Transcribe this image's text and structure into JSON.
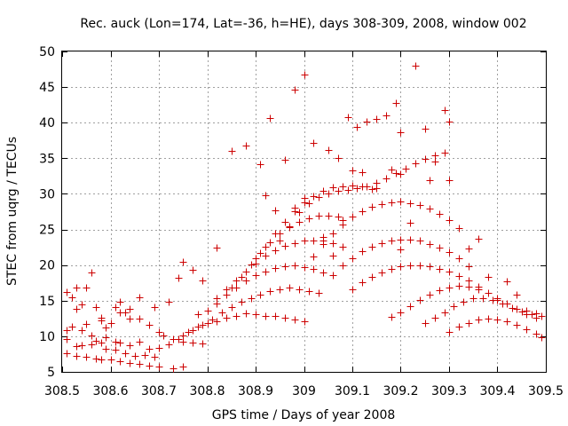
{
  "chart_data": {
    "type": "scatter",
    "title": "Rec. auck (Lon=174, Lat=-36, h=HE), days 308-309, 2008, window 002",
    "xlabel": "GPS time / Days of year 2008",
    "ylabel": "STEC from uqrg / TECUs",
    "xlim": [
      308.5,
      309.5
    ],
    "ylim": [
      5,
      50
    ],
    "xticks": [
      308.5,
      308.6,
      308.7,
      308.8,
      308.9,
      309,
      309.1,
      309.2,
      309.3,
      309.4,
      309.5
    ],
    "xtick_labels": [
      "308.5",
      "308.6",
      "308.7",
      "308.8",
      "308.9",
      "309",
      "309.1",
      "309.2",
      "309.3",
      "309.4",
      "309.5"
    ],
    "yticks": [
      5,
      10,
      15,
      20,
      25,
      30,
      35,
      40,
      45,
      50
    ],
    "ytick_labels": [
      "5",
      "10",
      "15",
      "20",
      "25",
      "30",
      "35",
      "40",
      "45",
      "50"
    ],
    "grid": true,
    "marker": "+",
    "color": "#cc0000",
    "series": [
      {
        "name": "STEC",
        "x": [
          308.51,
          308.52,
          308.53,
          308.54,
          308.55,
          308.57,
          308.58,
          308.6,
          308.62,
          308.64,
          308.51,
          308.52,
          308.54,
          308.55,
          308.56,
          308.57,
          308.59,
          308.61,
          308.62,
          308.64,
          308.66,
          308.51,
          308.53,
          308.54,
          308.56,
          308.58,
          308.59,
          308.61,
          308.63,
          308.65,
          308.67,
          308.69,
          308.51,
          308.53,
          308.55,
          308.57,
          308.58,
          308.6,
          308.62,
          308.64,
          308.66,
          308.68,
          308.7,
          308.73,
          308.75,
          308.62,
          308.64,
          308.66,
          308.68,
          308.7,
          308.71,
          308.73,
          308.75,
          308.77,
          308.79,
          308.68,
          308.7,
          308.72,
          308.74,
          308.76,
          308.78,
          308.8,
          308.82,
          308.84,
          308.86,
          308.88,
          308.9,
          308.92,
          308.94,
          308.96,
          308.98,
          309.0,
          308.75,
          308.77,
          308.79,
          308.81,
          308.83,
          308.85,
          308.87,
          308.89,
          308.91,
          308.93,
          308.95,
          308.97,
          308.99,
          309.01,
          309.03,
          308.78,
          308.8,
          308.82,
          308.84,
          308.86,
          308.88,
          308.9,
          308.92,
          308.94,
          308.96,
          308.98,
          309.0,
          309.02,
          309.04,
          308.82,
          308.84,
          308.86,
          308.88,
          308.9,
          308.92,
          308.94,
          308.96,
          308.98,
          309.0,
          309.02,
          309.04,
          309.06,
          309.08,
          308.85,
          308.87,
          308.89,
          308.91,
          308.93,
          308.95,
          308.97,
          308.99,
          309.01,
          309.03,
          309.05,
          309.07,
          308.9,
          308.92,
          308.94,
          308.96,
          308.98,
          309.0,
          309.02,
          309.04,
          309.06,
          309.08,
          309.1,
          309.12,
          309.14,
          308.95,
          308.97,
          308.99,
          309.01,
          309.03,
          309.05,
          309.07,
          309.09,
          309.11,
          309.13,
          309.15,
          309.17,
          309.19,
          309.21,
          309.23,
          309.25,
          309.27,
          309.29,
          309.02,
          309.04,
          309.06,
          309.08,
          309.1,
          309.12,
          309.14,
          309.16,
          309.18,
          309.2,
          309.22,
          309.24,
          309.26,
          309.28,
          309.3,
          309.32,
          309.06,
          309.08,
          309.1,
          309.12,
          309.14,
          309.16,
          309.18,
          309.2,
          309.22,
          309.24,
          309.26,
          309.28,
          309.3,
          309.32,
          309.34,
          309.1,
          309.12,
          309.14,
          309.16,
          309.18,
          309.2,
          309.22,
          309.24,
          309.26,
          309.28,
          309.3,
          309.32,
          309.34,
          309.36,
          309.38,
          309.4,
          309.18,
          309.2,
          309.22,
          309.24,
          309.26,
          309.28,
          309.3,
          309.32,
          309.34,
          309.36,
          309.38,
          309.4,
          309.42,
          309.44,
          309.46,
          309.48,
          309.25,
          309.27,
          309.29,
          309.31,
          309.33,
          309.35,
          309.37,
          309.39,
          309.41,
          309.43,
          309.45,
          309.47,
          309.49,
          309.3,
          309.32,
          309.34,
          309.36,
          309.38,
          309.4,
          309.42,
          309.44,
          309.46,
          309.48,
          309.49,
          308.85,
          308.88,
          308.91,
          308.93,
          308.96,
          308.98,
          309.0,
          309.02,
          309.05,
          309.07,
          309.09,
          309.11,
          309.13,
          309.15,
          309.17,
          309.19,
          309.2,
          309.23,
          309.25,
          309.27,
          309.29,
          309.3,
          308.98,
          309.0,
          309.1,
          309.12,
          309.18,
          309.2,
          309.08,
          309.15,
          309.3,
          309.36,
          308.56,
          308.53,
          308.59,
          308.61,
          308.63,
          308.58,
          308.66,
          308.69,
          308.72,
          308.74,
          308.75,
          308.77,
          308.79,
          308.82,
          308.92,
          308.94,
          309.04,
          309.06,
          309.2,
          309.22,
          309.26,
          309.34,
          309.38,
          309.42,
          309.44,
          309.46,
          309.48
        ],
        "y": [
          16.2,
          15.5,
          16.8,
          14.5,
          16.9,
          14.1,
          12.6,
          11.9,
          13.3,
          12.5,
          10.9,
          11.4,
          10.8,
          11.7,
          10.1,
          9.4,
          9.8,
          9.3,
          9.1,
          8.8,
          9.2,
          9.6,
          8.6,
          8.7,
          8.9,
          9.1,
          8.2,
          8.1,
          7.6,
          7.2,
          7.4,
          7.1,
          7.6,
          7.2,
          7.1,
          6.9,
          6.8,
          6.7,
          6.5,
          6.3,
          6.1,
          5.9,
          5.7,
          5.5,
          5.8,
          14.9,
          13.8,
          12.5,
          11.6,
          10.6,
          10.1,
          9.6,
          9.3,
          9.1,
          9.0,
          8.2,
          8.4,
          8.9,
          9.6,
          10.6,
          11.3,
          11.8,
          12.1,
          12.6,
          12.9,
          13.2,
          13.1,
          12.9,
          12.8,
          12.6,
          12.4,
          12.1,
          10.1,
          10.8,
          11.6,
          12.4,
          13.3,
          14.1,
          14.8,
          15.4,
          15.9,
          16.3,
          16.6,
          16.8,
          16.6,
          16.4,
          16.1,
          13.1,
          13.6,
          14.6,
          15.8,
          16.9,
          17.9,
          18.6,
          19.1,
          19.6,
          19.8,
          19.9,
          19.7,
          19.4,
          19.0,
          15.3,
          16.6,
          17.9,
          19.1,
          20.2,
          21.3,
          22.1,
          22.7,
          23.1,
          23.4,
          23.5,
          23.4,
          23.1,
          22.6,
          16.9,
          18.4,
          20.1,
          21.7,
          23.2,
          24.4,
          25.3,
          26.1,
          26.6,
          26.9,
          27.0,
          26.8,
          20.9,
          22.6,
          24.4,
          26.1,
          27.6,
          28.8,
          29.7,
          30.4,
          30.9,
          31.1,
          31.2,
          31.0,
          30.7,
          23.4,
          25.4,
          27.4,
          28.7,
          29.6,
          30.1,
          30.4,
          30.6,
          30.8,
          31.1,
          31.6,
          32.2,
          32.9,
          33.6,
          34.3,
          34.9,
          35.4,
          35.8,
          21.2,
          22.9,
          24.4,
          25.7,
          26.8,
          27.6,
          28.2,
          28.6,
          28.8,
          28.9,
          28.7,
          28.4,
          27.9,
          27.2,
          26.3,
          25.2,
          18.6,
          19.9,
          21.0,
          21.9,
          22.6,
          23.1,
          23.4,
          23.6,
          23.6,
          23.4,
          23.0,
          22.5,
          21.8,
          20.9,
          19.8,
          16.6,
          17.6,
          18.4,
          19.0,
          19.5,
          19.8,
          20.0,
          20.0,
          19.8,
          19.5,
          19.1,
          18.5,
          17.8,
          17.0,
          16.1,
          15.1,
          12.7,
          13.4,
          14.2,
          15.1,
          15.9,
          16.5,
          16.9,
          17.1,
          17.0,
          16.6,
          16.1,
          15.4,
          14.6,
          13.8,
          13.1,
          12.6,
          11.9,
          12.6,
          13.4,
          14.2,
          14.9,
          15.3,
          15.4,
          15.1,
          14.6,
          14.0,
          13.5,
          13.1,
          12.8,
          10.6,
          11.3,
          11.9,
          12.3,
          12.5,
          12.4,
          12.1,
          11.6,
          11.0,
          10.4,
          9.8,
          36.0,
          36.8,
          34.2,
          40.6,
          34.8,
          44.6,
          46.8,
          37.2,
          36.2,
          35.0,
          40.8,
          39.4,
          40.2,
          40.5,
          41.0,
          42.8,
          38.6,
          48.0,
          39.2,
          34.6,
          41.8,
          40.1,
          28.0,
          29.4,
          33.3,
          33.0,
          33.4,
          32.8,
          26.3,
          30.8,
          31.9,
          23.7,
          19.0,
          13.8,
          11.2,
          14.1,
          13.3,
          12.2,
          15.5,
          14.1,
          14.8,
          18.2,
          20.4,
          19.3,
          17.8,
          22.5,
          29.8,
          27.7,
          24.0,
          21.3,
          22.2,
          26.0,
          31.9,
          22.3,
          18.3,
          17.7,
          15.9,
          13.6,
          13.2
        ]
      }
    ]
  }
}
